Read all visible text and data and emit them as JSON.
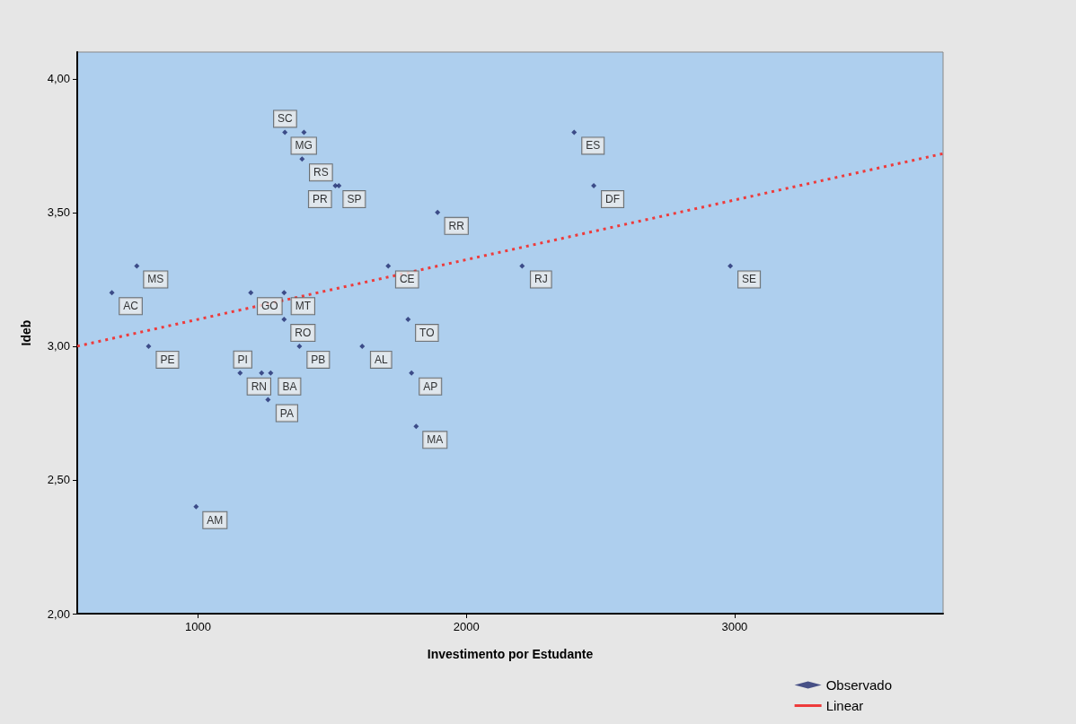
{
  "chart_data": {
    "type": "scatter",
    "xlabel": "Investimento por Estudante",
    "ylabel": "Ideb",
    "xlim": [
      550,
      3777
    ],
    "xticks": [
      1000,
      2000,
      3000
    ],
    "ylim": [
      2,
      4.1
    ],
    "yticks": [
      {
        "value": 2,
        "label": "2,00"
      },
      {
        "value": 2.5,
        "label": "2,50"
      },
      {
        "value": 3,
        "label": "3,00"
      },
      {
        "value": 3.5,
        "label": "3,50"
      },
      {
        "value": 4,
        "label": "4,00"
      }
    ],
    "grid": false,
    "legend": "bottom right",
    "marker": "diamond",
    "series": [
      {
        "name": "Observado",
        "color": "#1f2a6e",
        "x": [
          1324,
          1395,
          1388,
          1512,
          1525,
          2402,
          2475,
          1893,
          772,
          679,
          1197,
          1321,
          1321,
          1709,
          2208,
          2984,
          1783,
          816,
          1378,
          1612,
          1157,
          1237,
          1271,
          1261,
          1796,
          1813,
          993
        ],
        "values": [
          3.8,
          3.8,
          3.7,
          3.6,
          3.6,
          3.8,
          3.6,
          3.5,
          3.3,
          3.2,
          3.2,
          3.2,
          3.1,
          3.3,
          3.3,
          3.3,
          3.1,
          3.0,
          3.0,
          3.0,
          2.9,
          2.9,
          2.9,
          2.8,
          2.9,
          2.7,
          2.4
        ],
        "value_labels": [
          "MG",
          "SC",
          "RS",
          "SP",
          "PR",
          "ES",
          "DF",
          "RR",
          "MS",
          "AC",
          "GO",
          "MT",
          "RO",
          "CE",
          "RJ",
          "SE",
          "TO",
          "PE",
          "PB",
          "AL",
          "RN",
          "PI",
          "BA",
          "PA",
          "AP",
          "MA",
          "AM"
        ]
      },
      {
        "name": "Linear",
        "type": "line",
        "color": "#ee3b3b",
        "line_style": "dotted",
        "marker": "none",
        "x": [
          550,
          3777
        ],
        "values": [
          3.0,
          3.72
        ]
      }
    ]
  }
}
